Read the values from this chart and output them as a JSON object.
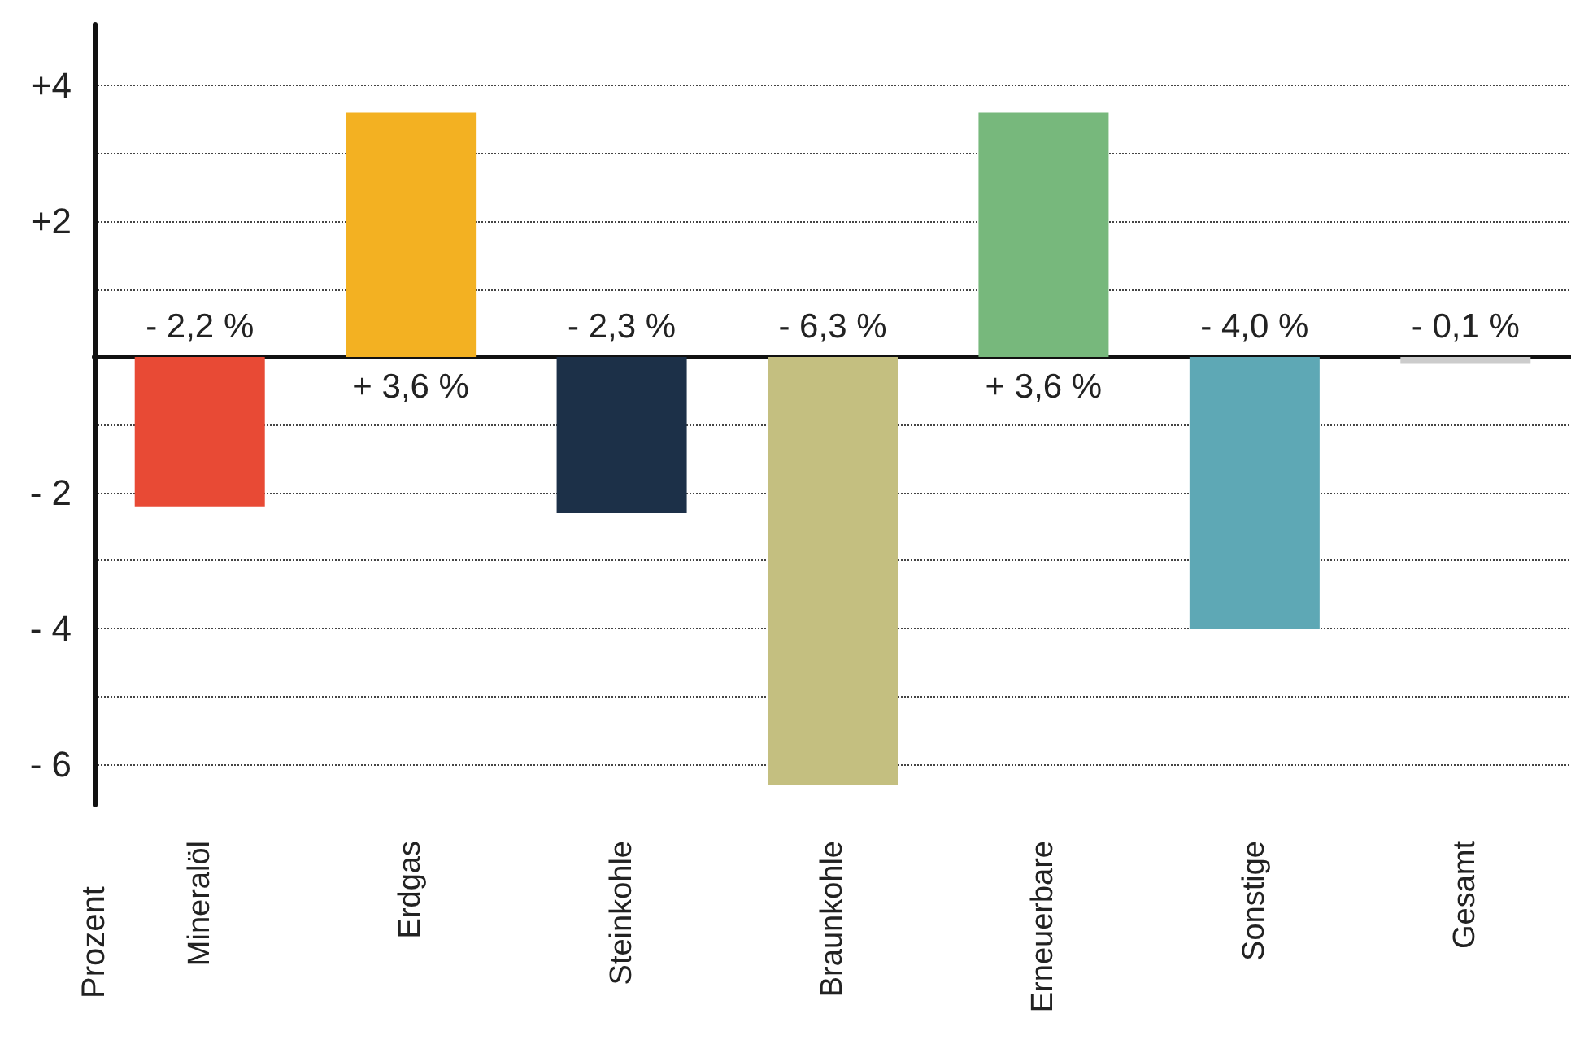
{
  "chart_data": {
    "type": "bar",
    "ylabel": "Prozent",
    "categories": [
      "Mineralöl",
      "Erdgas",
      "Steinkohle",
      "Braunkohle",
      "Erneuerbare",
      "Sonstige",
      "Gesamt"
    ],
    "values": [
      -2.2,
      3.6,
      -2.3,
      -6.3,
      3.6,
      -4.0,
      -0.1
    ],
    "colors": [
      "#e84a35",
      "#f3b122",
      "#1c3048",
      "#c4bf80",
      "#77b87c",
      "#5ea8b5",
      "#cccccc"
    ],
    "value_labels": [
      "- 2,2 %",
      "+ 3,6 %",
      "- 2,3 %",
      "- 6,3 %",
      "+ 3,6 %",
      "- 4,0 %",
      "- 0,1 %"
    ],
    "ylim": [
      -6.6,
      4.9
    ],
    "yticks": [
      {
        "value": 4,
        "label": "+4"
      },
      {
        "value": 3,
        "label": null
      },
      {
        "value": 2,
        "label": "+2"
      },
      {
        "value": 1,
        "label": null
      },
      {
        "value": 0,
        "label": null
      },
      {
        "value": -1,
        "label": null
      },
      {
        "value": -2,
        "label": "- 2"
      },
      {
        "value": -3,
        "label": null
      },
      {
        "value": -4,
        "label": "- 4"
      },
      {
        "value": -5,
        "label": null
      },
      {
        "value": -6,
        "label": "- 6"
      }
    ],
    "grid": "y"
  }
}
